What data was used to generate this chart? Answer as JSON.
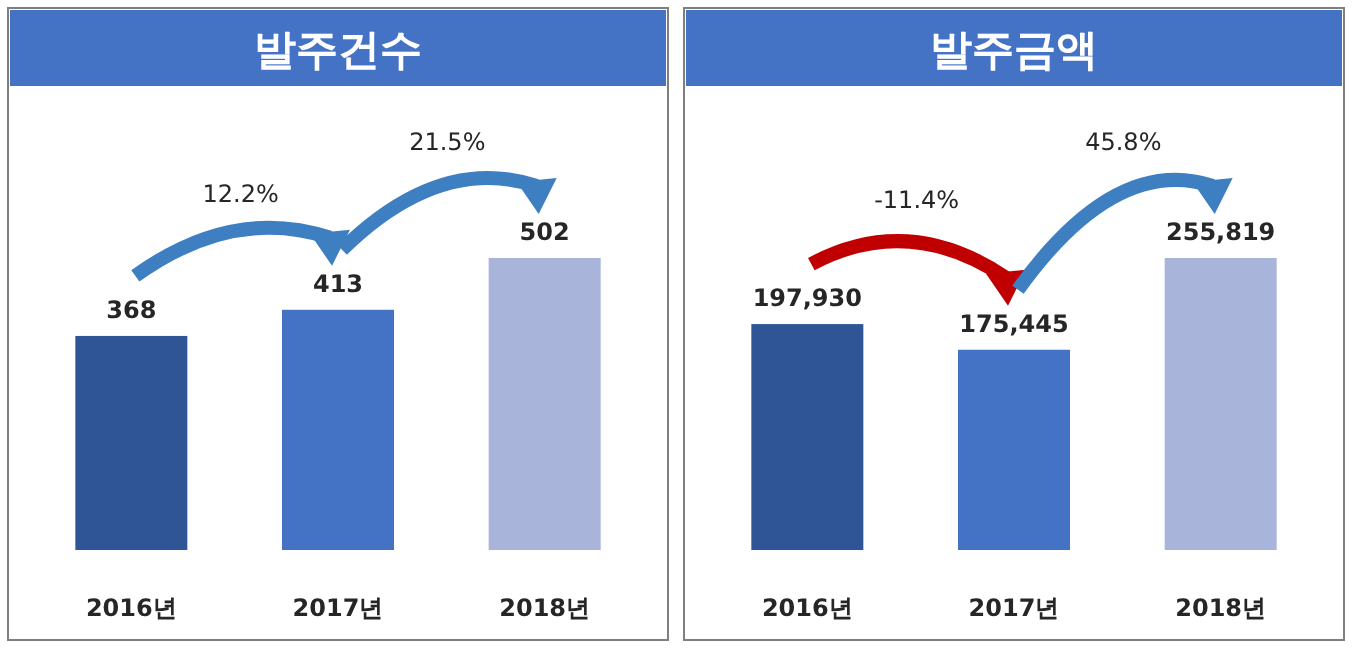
{
  "chart_data": [
    {
      "type": "bar",
      "title": "발주건수",
      "categories": [
        "2016년",
        "2017년",
        "2018년"
      ],
      "values": [
        368,
        413,
        502
      ],
      "colors": [
        "#2f5597",
        "#4472c4",
        "#a9b4da"
      ],
      "data_labels": true,
      "annotations": [
        "12.2%",
        "21.5%"
      ]
    },
    {
      "type": "bar",
      "title": "발주금액",
      "categories": [
        "2016년",
        "2017년",
        "2018년"
      ],
      "values": [
        197930,
        175445,
        255819
      ],
      "value_labels": [
        "197,930",
        "175,445",
        "255,819"
      ],
      "colors": [
        "#2f5597",
        "#4472c4",
        "#a9b4da"
      ],
      "annotations": [
        "-11.4%",
        "45.8%"
      ]
    }
  ]
}
